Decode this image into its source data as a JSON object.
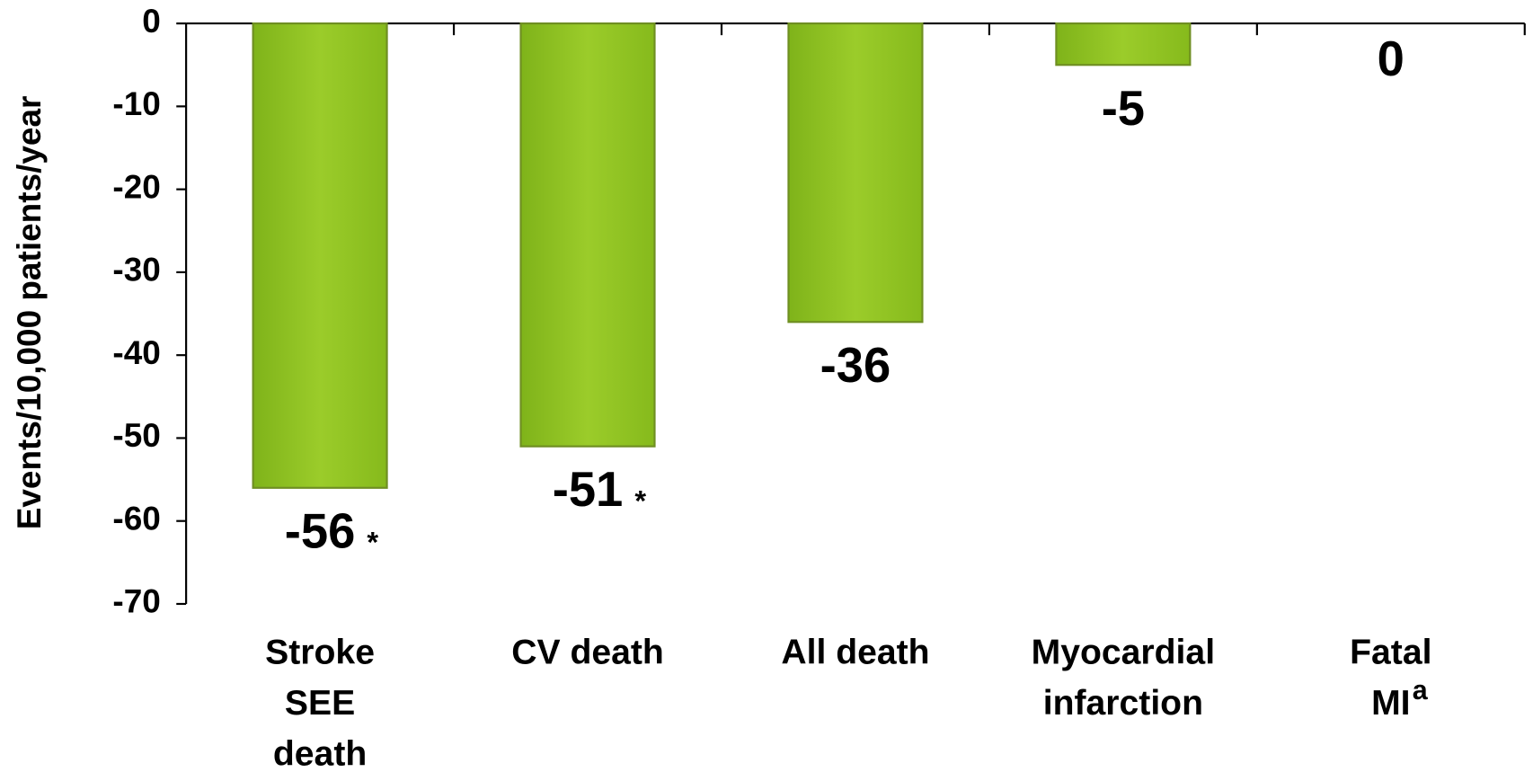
{
  "chart_data": {
    "type": "bar",
    "y_axis_label": "Events/10,000 patients/year",
    "categories": [
      "Stroke\nSEE\ndeath",
      "CV death",
      "All death",
      "Myocardial\ninfarction",
      "Fatal\nMI"
    ],
    "category_superscripts": [
      null,
      null,
      null,
      null,
      "a"
    ],
    "values": [
      -56,
      -51,
      -36,
      -5,
      0
    ],
    "significance": [
      "*",
      "*",
      null,
      null,
      null
    ],
    "color": "#8dc21f",
    "ylim": [
      -70,
      0
    ],
    "yticks": [
      0,
      -10,
      -20,
      -30,
      -40,
      -50,
      -60,
      -70
    ],
    "grid": false
  }
}
